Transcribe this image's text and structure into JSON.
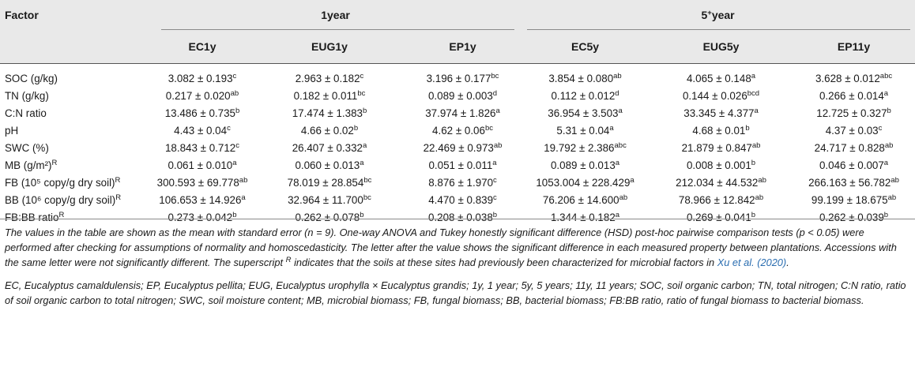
{
  "table": {
    "factor_header": "Factor",
    "group_1year": "1year",
    "group_5year": {
      "base": "5",
      "sup": "+",
      "rest": "year"
    },
    "columns": [
      "EC1y",
      "EUG1y",
      "EP1y",
      "EC5y",
      "EUG5y",
      "EP11y"
    ],
    "rows": [
      {
        "label": {
          "text": "SOC (g/kg)",
          "sup": ""
        },
        "cells": [
          {
            "v": "3.082 ± 0.193",
            "s": "c"
          },
          {
            "v": "2.963 ± 0.182",
            "s": "c"
          },
          {
            "v": "3.196 ± 0.177",
            "s": "bc"
          },
          {
            "v": "3.854 ± 0.080",
            "s": "ab"
          },
          {
            "v": "4.065 ± 0.148",
            "s": "a"
          },
          {
            "v": "3.628 ± 0.012",
            "s": "abc"
          }
        ]
      },
      {
        "label": {
          "text": "TN (g/kg)",
          "sup": ""
        },
        "cells": [
          {
            "v": "0.217 ± 0.020",
            "s": "ab"
          },
          {
            "v": "0.182 ± 0.011",
            "s": "bc"
          },
          {
            "v": "0.089 ± 0.003",
            "s": "d"
          },
          {
            "v": "0.112 ± 0.012",
            "s": "d"
          },
          {
            "v": "0.144 ± 0.026",
            "s": "bcd"
          },
          {
            "v": "0.266 ± 0.014",
            "s": "a"
          }
        ]
      },
      {
        "label": {
          "text": "C:N ratio",
          "sup": ""
        },
        "cells": [
          {
            "v": "13.486 ± 0.735",
            "s": "b"
          },
          {
            "v": "17.474 ± 1.383",
            "s": "b"
          },
          {
            "v": "37.974 ± 1.826",
            "s": "a"
          },
          {
            "v": "36.954 ± 3.503",
            "s": "a"
          },
          {
            "v": "33.345 ± 4.377",
            "s": "a"
          },
          {
            "v": "12.725 ± 0.327",
            "s": "b"
          }
        ]
      },
      {
        "label": {
          "text": "pH",
          "sup": ""
        },
        "cells": [
          {
            "v": "4.43 ± 0.04",
            "s": "c"
          },
          {
            "v": "4.66 ± 0.02",
            "s": "b"
          },
          {
            "v": "4.62 ± 0.06",
            "s": "bc"
          },
          {
            "v": "5.31 ± 0.04",
            "s": "a"
          },
          {
            "v": "4.68 ± 0.01",
            "s": "b"
          },
          {
            "v": "4.37 ± 0.03",
            "s": "c"
          }
        ]
      },
      {
        "label": {
          "text": "SWC (%)",
          "sup": ""
        },
        "cells": [
          {
            "v": "18.843 ± 0.712",
            "s": "c"
          },
          {
            "v": "26.407 ± 0.332",
            "s": "a"
          },
          {
            "v": "22.469 ± 0.973",
            "s": "ab"
          },
          {
            "v": "19.792 ± 2.386",
            "s": "abc"
          },
          {
            "v": "21.879 ± 0.847",
            "s": "ab"
          },
          {
            "v": "24.717 ± 0.828",
            "s": "ab"
          }
        ]
      },
      {
        "label": {
          "text": "MB (g/m²)",
          "sup": "R"
        },
        "cells": [
          {
            "v": "0.061 ± 0.010",
            "s": "a"
          },
          {
            "v": "0.060 ± 0.013",
            "s": "a"
          },
          {
            "v": "0.051 ± 0.011",
            "s": "a"
          },
          {
            "v": "0.089 ± 0.013",
            "s": "a"
          },
          {
            "v": "0.008 ± 0.001",
            "s": "b"
          },
          {
            "v": "0.046 ± 0.007",
            "s": "a"
          }
        ]
      },
      {
        "label": {
          "text": "FB (10⁵ copy/g dry soil)",
          "sup": "R"
        },
        "cells": [
          {
            "v": "300.593 ± 69.778",
            "s": "ab"
          },
          {
            "v": "78.019 ± 28.854",
            "s": "bc"
          },
          {
            "v": "8.876 ± 1.970",
            "s": "c"
          },
          {
            "v": "1053.004 ± 228.429",
            "s": "a"
          },
          {
            "v": "212.034 ± 44.532",
            "s": "ab"
          },
          {
            "v": "266.163 ± 56.782",
            "s": "ab"
          }
        ]
      },
      {
        "label": {
          "text": "BB (10⁶ copy/g dry soil)",
          "sup": "R"
        },
        "cells": [
          {
            "v": "106.653 ± 14.926",
            "s": "a"
          },
          {
            "v": "32.964 ± 11.700",
            "s": "bc"
          },
          {
            "v": "4.470 ± 0.839",
            "s": "c"
          },
          {
            "v": "76.206 ± 14.600",
            "s": "ab"
          },
          {
            "v": "78.966 ± 12.842",
            "s": "ab"
          },
          {
            "v": "99.199 ± 18.675",
            "s": "ab"
          }
        ]
      },
      {
        "label": {
          "text": "FB:BB ratio",
          "sup": "R"
        },
        "cells": [
          {
            "v": "0.273 ± 0.042",
            "s": "b"
          },
          {
            "v": "0.262 ± 0.078",
            "s": "b"
          },
          {
            "v": "0.208 ± 0.038",
            "s": "b"
          },
          {
            "v": "1.344 ± 0.182",
            "s": "a"
          },
          {
            "v": "0.269 ± 0.041",
            "s": "b"
          },
          {
            "v": "0.262 ± 0.039",
            "s": "b"
          }
        ]
      }
    ]
  },
  "footnote": {
    "part1": "The values in the table are shown as the mean with standard error (n = 9). One-way ANOVA and Tukey honestly significant difference (HSD) post-hoc pairwise comparison tests (p < 0.05) were performed after checking for assumptions of normality and homoscedasticity. The letter after the value shows the significant difference in each measured property between plantations. Accessions with the same letter were not significantly different. The superscript ",
    "sup": "R",
    "part2": " indicates that the soils at these sites had previously been characterized for microbial factors in ",
    "citation": "Xu et al. (2020)",
    "part3": ".",
    "abbreviations": "EC, Eucalyptus camaldulensis; EP, Eucalyptus pellita; EUG, Eucalyptus urophylla × Eucalyptus grandis; 1y, 1 year; 5y, 5 years; 11y, 11 years; SOC, soil organic carbon; TN, total nitrogen; C:N ratio, ratio of soil organic carbon to total nitrogen; SWC, soil moisture content; MB, microbial biomass; FB, fungal biomass; BB, bacterial biomass; FB:BB ratio, ratio of fungal biomass to bacterial biomass."
  }
}
